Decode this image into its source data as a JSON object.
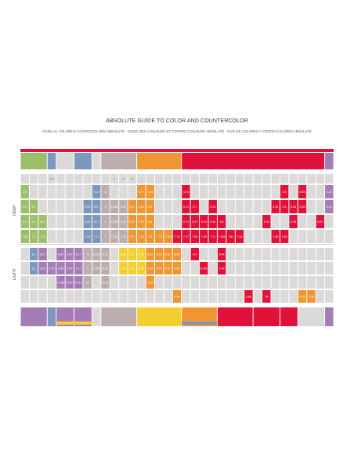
{
  "document": {
    "title": "ABSOLUTE GUIDE TO COLOR AND COUNTERCOLOR",
    "subtitle": "GUIDA AL COLORE E CONTROCOLORE ABSOLUTE - GUIDE DES COULEURS ET CONTRE COULEURS ABSOLUTE - GUÍA DE COLORES Y CONTRACOLORES ABSOLUTE",
    "section_deep": "DEEP",
    "section_light": "LIGHT"
  },
  "colors": {
    "red": "#e0123a",
    "green": "#9cbf6c",
    "blue": "#7c98c0",
    "purple": "#a47cb6",
    "taupe": "#bcaeae",
    "orange": "#ef9632",
    "yellow": "#f3cf2e",
    "grey": "#dcdad8",
    "white": "#ffffff"
  },
  "grid": {
    "columns": 35,
    "top_bands": [
      {
        "from": 0,
        "to": 2,
        "color": "green"
      },
      {
        "from": 3,
        "to": 3,
        "color": "blue"
      },
      {
        "from": 4,
        "to": 5,
        "color": "grey"
      },
      {
        "from": 6,
        "to": 7,
        "color": "blue"
      },
      {
        "from": 8,
        "to": 8,
        "color": "grey"
      },
      {
        "from": 9,
        "to": 12,
        "color": "taupe"
      },
      {
        "from": 13,
        "to": 17,
        "color": "orange"
      },
      {
        "from": 18,
        "to": 33,
        "color": "red"
      },
      {
        "from": 34,
        "to": 34,
        "color": "purple"
      }
    ],
    "bottom_bands": [
      {
        "from": 0,
        "to": 2,
        "color": "purple"
      },
      {
        "from": 3,
        "to": 3,
        "color": "blue"
      },
      {
        "from": 4,
        "to": 5,
        "color": "purple"
      },
      {
        "from": 6,
        "to": 7,
        "color": "purple"
      },
      {
        "from": 8,
        "to": 8,
        "color": "grey"
      },
      {
        "from": 9,
        "to": 12,
        "color": "taupe"
      },
      {
        "from": 13,
        "to": 17,
        "color": "yellow"
      },
      {
        "from": 18,
        "to": 21,
        "color": "orange"
      },
      {
        "from": 22,
        "to": 25,
        "color": "red"
      },
      {
        "from": 26,
        "to": 28,
        "color": "red"
      },
      {
        "from": 29,
        "to": 30,
        "color": "red"
      },
      {
        "from": 31,
        "to": 33,
        "color": "grey"
      },
      {
        "from": 34,
        "to": 34,
        "color": "purple"
      }
    ],
    "header_row": [
      {
        "col": 3,
        "text": "1.6",
        "color": "grey"
      },
      {
        "col": 10,
        "text": "1",
        "color": "grey"
      },
      {
        "col": 11,
        "text": "2",
        "color": "grey"
      },
      {
        "col": 12,
        "text": "3",
        "color": "grey"
      }
    ],
    "deep_rows": [
      [
        {
          "col": 0,
          "text": "4.0",
          "color": "green"
        },
        {
          "col": 8,
          "text": "4.17",
          "color": "blue"
        },
        {
          "col": 9,
          "text": "4",
          "color": "taupe"
        },
        {
          "col": 13,
          "text": "4.07",
          "color": "orange"
        },
        {
          "col": 14,
          "text": "4.03",
          "color": "orange"
        },
        {
          "col": 18,
          "text": "4.74",
          "color": "red"
        },
        {
          "col": 29,
          "text": "4.5",
          "color": "red"
        },
        {
          "col": 31,
          "text": "4.65",
          "color": "red"
        },
        {
          "col": 34,
          "text": "4.22",
          "color": "purple"
        }
      ],
      [
        {
          "col": 0,
          "text": "5.0",
          "color": "green"
        },
        {
          "col": 1,
          "text": "5.1",
          "color": "green"
        },
        {
          "col": 7,
          "text": "5.00",
          "color": "blue"
        },
        {
          "col": 8,
          "text": "5.17",
          "color": "blue"
        },
        {
          "col": 9,
          "text": "5",
          "color": "taupe"
        },
        {
          "col": 10,
          "text": "5.036",
          "color": "taupe"
        },
        {
          "col": 11,
          "text": "5.32",
          "color": "taupe"
        },
        {
          "col": 12,
          "text": "5.07",
          "color": "orange"
        },
        {
          "col": 13,
          "text": "5.03",
          "color": "orange"
        },
        {
          "col": 14,
          "text": "5.3",
          "color": "orange"
        },
        {
          "col": 18,
          "text": "5.74",
          "color": "red"
        },
        {
          "col": 19,
          "text": "5.7",
          "color": "red"
        },
        {
          "col": 21,
          "text": "5.43",
          "color": "red"
        },
        {
          "col": 28,
          "text": "5.45",
          "color": "red"
        },
        {
          "col": 29,
          "text": "5.5",
          "color": "red"
        },
        {
          "col": 30,
          "text": "5.56",
          "color": "red"
        },
        {
          "col": 31,
          "text": "5.65",
          "color": "red"
        },
        {
          "col": 34,
          "text": "5.22",
          "color": "purple"
        }
      ],
      [
        {
          "col": 0,
          "text": "6.0",
          "color": "green"
        },
        {
          "col": 1,
          "text": "6.1",
          "color": "green"
        },
        {
          "col": 2,
          "text": "6.21",
          "color": "green"
        },
        {
          "col": 7,
          "text": "6.00",
          "color": "blue"
        },
        {
          "col": 8,
          "text": "6.17",
          "color": "blue"
        },
        {
          "col": 9,
          "text": "6",
          "color": "taupe"
        },
        {
          "col": 10,
          "text": "6.036",
          "color": "taupe"
        },
        {
          "col": 11,
          "text": "6.32",
          "color": "taupe"
        },
        {
          "col": 12,
          "text": "6.07",
          "color": "orange"
        },
        {
          "col": 13,
          "text": "6.03",
          "color": "orange"
        },
        {
          "col": 14,
          "text": "6.3",
          "color": "orange"
        },
        {
          "col": 18,
          "text": "6.74",
          "color": "red"
        },
        {
          "col": 19,
          "text": "6.37",
          "color": "red"
        },
        {
          "col": 20,
          "text": "6.04",
          "color": "red"
        },
        {
          "col": 21,
          "text": "6.43",
          "color": "red"
        },
        {
          "col": 22,
          "text": "6.4",
          "color": "red"
        },
        {
          "col": 27,
          "text": "6.66",
          "color": "red"
        },
        {
          "col": 30,
          "text": "6.56",
          "color": "red"
        },
        {
          "col": 33,
          "text": "6.62",
          "color": "red"
        }
      ],
      [
        {
          "col": 0,
          "text": "7.00",
          "color": "green"
        },
        {
          "col": 1,
          "text": "7.1",
          "color": "green"
        },
        {
          "col": 2,
          "text": "7.21",
          "color": "green"
        },
        {
          "col": 7,
          "text": "7.00",
          "color": "blue"
        },
        {
          "col": 8,
          "text": "7.17",
          "color": "blue"
        },
        {
          "col": 9,
          "text": "7",
          "color": "taupe"
        },
        {
          "col": 10,
          "text": "7.036",
          "color": "taupe"
        },
        {
          "col": 11,
          "text": "7.32",
          "color": "taupe"
        },
        {
          "col": 12,
          "text": "7.07",
          "color": "orange"
        },
        {
          "col": 13,
          "text": "7.03",
          "color": "orange"
        },
        {
          "col": 14,
          "text": "7.3",
          "color": "orange"
        },
        {
          "col": 15,
          "text": "7.73",
          "color": "orange"
        },
        {
          "col": 16,
          "text": "7.34",
          "color": "orange"
        },
        {
          "col": 17,
          "text": "7.74",
          "color": "red"
        },
        {
          "col": 18,
          "text": "7.37",
          "color": "red"
        },
        {
          "col": 19,
          "text": "7.04",
          "color": "red"
        },
        {
          "col": 20,
          "text": "7.43",
          "color": "red"
        },
        {
          "col": 21,
          "text": "7.4",
          "color": "red"
        },
        {
          "col": 22,
          "text": "7.434",
          "color": "red"
        },
        {
          "col": 23,
          "text": "7M",
          "color": "red"
        },
        {
          "col": 24,
          "text": "7.44",
          "color": "red"
        },
        {
          "col": 28,
          "text": "7.46",
          "color": "red"
        },
        {
          "col": 29,
          "text": "7.64",
          "color": "red"
        }
      ]
    ],
    "light_rows": [
      [
        {
          "col": 1,
          "text": "8.1",
          "color": "blue"
        },
        {
          "col": 2,
          "text": "8.21",
          "color": "purple"
        },
        {
          "col": 4,
          "text": "8.89",
          "color": "purple"
        },
        {
          "col": 5,
          "text": "8.00",
          "color": "purple"
        },
        {
          "col": 6,
          "text": "8.17",
          "color": "purple"
        },
        {
          "col": 7,
          "text": "8",
          "color": "taupe"
        },
        {
          "col": 8,
          "text": "8.036",
          "color": "taupe"
        },
        {
          "col": 9,
          "text": "8.32",
          "color": "taupe"
        },
        {
          "col": 11,
          "text": "8.03",
          "color": "yellow"
        },
        {
          "col": 12,
          "text": "8.3",
          "color": "yellow"
        },
        {
          "col": 13,
          "text": "8.73",
          "color": "yellow"
        },
        {
          "col": 14,
          "text": "8.34",
          "color": "orange"
        },
        {
          "col": 15,
          "text": "8.74",
          "color": "orange"
        },
        {
          "col": 16,
          "text": "8.37",
          "color": "orange"
        },
        {
          "col": 17,
          "text": "8.04",
          "color": "orange"
        },
        {
          "col": 19,
          "text": "8.4",
          "color": "red"
        },
        {
          "col": 22,
          "text": "8.44",
          "color": "red"
        }
      ],
      [
        {
          "col": 1,
          "text": "9.1",
          "color": "blue"
        },
        {
          "col": 2,
          "text": "9.21",
          "color": "purple"
        },
        {
          "col": 3,
          "text": "9.29",
          "color": "purple"
        },
        {
          "col": 4,
          "text": "9.89",
          "color": "purple"
        },
        {
          "col": 5,
          "text": "9.00",
          "color": "purple"
        },
        {
          "col": 6,
          "text": "9.17",
          "color": "purple"
        },
        {
          "col": 7,
          "text": "9",
          "color": "taupe"
        },
        {
          "col": 8,
          "text": "9.036",
          "color": "taupe"
        },
        {
          "col": 9,
          "text": "9.32",
          "color": "taupe"
        },
        {
          "col": 11,
          "text": "9.03",
          "color": "yellow"
        },
        {
          "col": 12,
          "text": "9.3",
          "color": "yellow"
        },
        {
          "col": 13,
          "text": "9.73",
          "color": "yellow"
        },
        {
          "col": 14,
          "text": "9.34",
          "color": "orange"
        },
        {
          "col": 15,
          "text": "9.74",
          "color": "orange"
        },
        {
          "col": 16,
          "text": "9.37",
          "color": "orange"
        },
        {
          "col": 17,
          "text": "9.04",
          "color": "orange"
        },
        {
          "col": 20,
          "text": "9.433",
          "color": "red"
        },
        {
          "col": 22,
          "text": "9.44",
          "color": "red"
        }
      ],
      [
        {
          "col": 4,
          "text": "10.89",
          "color": "purple"
        },
        {
          "col": 5,
          "text": "10.00",
          "color": "purple"
        },
        {
          "col": 6,
          "text": "10.17",
          "color": "purple"
        },
        {
          "col": 7,
          "text": "10",
          "color": "taupe"
        },
        {
          "col": 9,
          "text": "10.32",
          "color": "taupe"
        },
        {
          "col": 14,
          "text": "10.34",
          "color": "orange"
        }
      ],
      [
        {
          "col": 17,
          "text": "0.44",
          "color": "orange"
        },
        {
          "col": 25,
          "text": "0.66",
          "color": "red"
        },
        {
          "col": 27,
          "text": "7B",
          "color": "red"
        },
        {
          "col": 31,
          "text": "0.28",
          "color": "orange"
        },
        {
          "col": 32,
          "text": "0.28",
          "color": "orange"
        }
      ]
    ]
  }
}
